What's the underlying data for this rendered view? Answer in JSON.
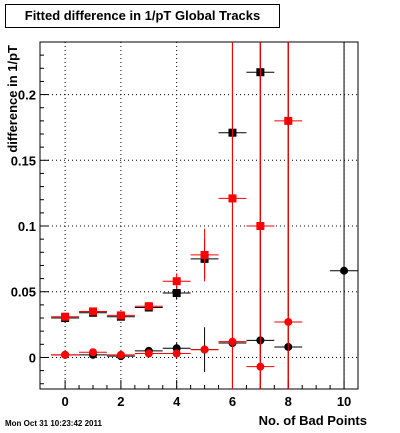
{
  "chart_data": {
    "type": "scatter",
    "title": "Fitted difference in 1/pT  Global Tracks",
    "xlabel": "No. of Bad Points",
    "ylabel": "difference in 1/pT",
    "xlim": [
      -0.9,
      10.5
    ],
    "ylim": [
      -0.024,
      0.24
    ],
    "x_ticks": [
      0,
      2,
      4,
      6,
      8,
      10
    ],
    "x_tick_labels": [
      "0",
      "2",
      "4",
      "6",
      "8",
      "10"
    ],
    "y_ticks": [
      0,
      0.05,
      0.1,
      0.15,
      0.2
    ],
    "y_tick_labels": [
      "0",
      "0.05",
      "0.1",
      "0.15",
      "0.2"
    ],
    "grid": true,
    "series": [
      {
        "marker": "square",
        "color": "#000000",
        "points": [
          {
            "x": 0,
            "y": 0.03,
            "xerr": 0.5,
            "yerr": 0.002
          },
          {
            "x": 1,
            "y": 0.034,
            "xerr": 0.5,
            "yerr": 0.002
          },
          {
            "x": 2,
            "y": 0.031,
            "xerr": 0.5,
            "yerr": 0.002
          },
          {
            "x": 3,
            "y": 0.038,
            "xerr": 0.5,
            "yerr": 0.003
          },
          {
            "x": 4,
            "y": 0.049,
            "xerr": 0.5,
            "yerr": 0.005
          },
          {
            "x": 5,
            "y": 0.075,
            "xerr": 0.5,
            "yerr": 0.015
          },
          {
            "x": 6,
            "y": 0.171,
            "xerr": 0.5,
            "yerr": 0.4
          },
          {
            "x": 7,
            "y": 0.217,
            "xerr": 0.5,
            "yerr": 0.4
          }
        ]
      },
      {
        "marker": "square",
        "color": "#ff0000",
        "points": [
          {
            "x": 0,
            "y": 0.031,
            "xerr": 0.5,
            "yerr": 0.002
          },
          {
            "x": 1,
            "y": 0.035,
            "xerr": 0.5,
            "yerr": 0.002
          },
          {
            "x": 2,
            "y": 0.032,
            "xerr": 0.5,
            "yerr": 0.002
          },
          {
            "x": 3,
            "y": 0.039,
            "xerr": 0.5,
            "yerr": 0.003
          },
          {
            "x": 4,
            "y": 0.058,
            "xerr": 0.5,
            "yerr": 0.006
          },
          {
            "x": 5,
            "y": 0.078,
            "xerr": 0.5,
            "yerr": 0.02
          },
          {
            "x": 6,
            "y": 0.121,
            "xerr": 0.5,
            "yerr": 0.4
          },
          {
            "x": 7,
            "y": 0.1,
            "xerr": 0.5,
            "yerr": 0.4
          },
          {
            "x": 8,
            "y": 0.18,
            "xerr": 0.5,
            "yerr": 0.4
          }
        ]
      },
      {
        "marker": "circle",
        "color": "#000000",
        "points": [
          {
            "x": 0,
            "y": 0.002,
            "xerr": 0.5,
            "yerr": 0.001
          },
          {
            "x": 1,
            "y": 0.002,
            "xerr": 0.5,
            "yerr": 0.001
          },
          {
            "x": 2,
            "y": 0.001,
            "xerr": 0.5,
            "yerr": 0.001
          },
          {
            "x": 3,
            "y": 0.005,
            "xerr": 0.5,
            "yerr": 0.002
          },
          {
            "x": 4,
            "y": 0.007,
            "xerr": 0.5,
            "yerr": 0.004
          },
          {
            "x": 5,
            "y": 0.006,
            "xerr": 0.5,
            "yerr": 0.017
          },
          {
            "x": 6,
            "y": 0.011,
            "xerr": 0.5,
            "yerr": 0.4
          },
          {
            "x": 7,
            "y": 0.013,
            "xerr": 0.5,
            "yerr": 0.4
          },
          {
            "x": 8,
            "y": 0.008,
            "xerr": 0.5,
            "yerr": 0.4
          },
          {
            "x": 10,
            "y": 0.066,
            "xerr": 0.5,
            "yerr": 0.4
          }
        ]
      },
      {
        "marker": "circle",
        "color": "#ff0000",
        "points": [
          {
            "x": 0,
            "y": 0.002,
            "xerr": 0.5,
            "yerr": 0.001
          },
          {
            "x": 1,
            "y": 0.004,
            "xerr": 0.5,
            "yerr": 0.001
          },
          {
            "x": 2,
            "y": 0.002,
            "xerr": 0.5,
            "yerr": 0.001
          },
          {
            "x": 3,
            "y": 0.003,
            "xerr": 0.5,
            "yerr": 0.002
          },
          {
            "x": 4,
            "y": 0.003,
            "xerr": 0.5,
            "yerr": 0.003
          },
          {
            "x": 5,
            "y": 0.006,
            "xerr": 0.5,
            "yerr": 0.003
          },
          {
            "x": 6,
            "y": 0.012,
            "xerr": 0.5,
            "yerr": 0.4
          },
          {
            "x": 7,
            "y": -0.007,
            "xerr": 0.5,
            "yerr": 0.4
          },
          {
            "x": 8,
            "y": 0.027,
            "xerr": 0.5,
            "yerr": 0.4
          }
        ]
      }
    ]
  },
  "footer": {
    "timestamp": "Mon Oct 31 10:23:42 2011"
  }
}
